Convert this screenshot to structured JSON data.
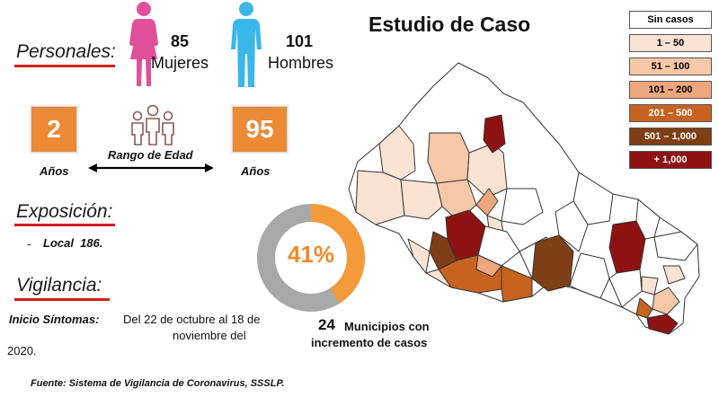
{
  "title": "Estudio de Caso",
  "colors": {
    "accent_orange": "#ec8a35",
    "underline_red": "#d01f1f",
    "women_pink": "#e0509a",
    "men_blue": "#3ab7e8",
    "donut_orange": "#f59a3a",
    "donut_gray": "#a8a8a8"
  },
  "personales": {
    "label": "Personales:",
    "women_count": "85",
    "women_label": "Mujeres",
    "men_count": "101",
    "men_label": "Hombres",
    "women_icon": "female-figure-icon",
    "men_icon": "male-figure-icon"
  },
  "age_range": {
    "min": "2",
    "max": "95",
    "min_unit": "Años",
    "max_unit": "Años",
    "label": "Rango de Edad",
    "icon": "group-people-icon"
  },
  "exposicion": {
    "label": "Exposición:",
    "bullet": "-",
    "item": "Local  186."
  },
  "vigilancia": {
    "label": "Vigilancia:",
    "inicio_label": "Inicio Síntomas:",
    "inicio_line1": "Del 22 de octubre al 18 de",
    "inicio_line2": "noviembre del",
    "inicio_line3": "2020."
  },
  "donut": {
    "percent_text": "41%",
    "fraction": 0.41
  },
  "municipios": {
    "count": "24",
    "line1": "Municipios con",
    "line2": "incremento de casos"
  },
  "legend": [
    {
      "label": "Sin casos",
      "color": "#ffffff",
      "text_color": "#000000"
    },
    {
      "label": "1 – 50",
      "color": "#fbe3d4",
      "text_color": "#000000"
    },
    {
      "label": "51 – 100",
      "color": "#f6c8a8",
      "text_color": "#000000"
    },
    {
      "label": "101 – 200",
      "color": "#eea77c",
      "text_color": "#000000"
    },
    {
      "label": "201 – 500",
      "color": "#c8621f",
      "text_color": "#ffffff"
    },
    {
      "label": "501 – 1,000",
      "color": "#7e3e16",
      "text_color": "#ffffff"
    },
    {
      "label": "+ 1,000",
      "color": "#8f1212",
      "text_color": "#ffffff"
    }
  ],
  "source": "Fuente: Sistema de Vigilancia de Coronavirus, SSSLP."
}
